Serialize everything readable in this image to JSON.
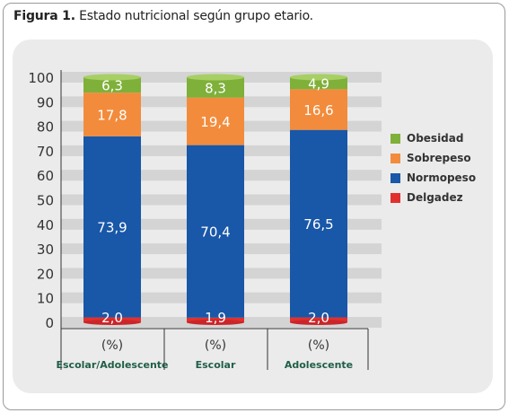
{
  "caption": {
    "number": "Figura 1.",
    "text": " Estado nutricional según grupo etario."
  },
  "colors": {
    "Obesidad": "#7fb03a",
    "Sobrepeso": "#f28c3c",
    "Normopeso": "#1957a8",
    "Delgadez": "#e0302d"
  },
  "chart_data": {
    "type": "bar",
    "stacked": true,
    "categories": [
      "Escolar/Adolescente",
      "Escolar",
      "Adolescente"
    ],
    "category_unit_label": "(%)",
    "series": [
      {
        "name": "Delgadez",
        "values": [
          2.0,
          1.9,
          2.0
        ],
        "labels": [
          "2,0",
          "1,9",
          "2,0"
        ]
      },
      {
        "name": "Normopeso",
        "values": [
          73.9,
          70.4,
          76.5
        ],
        "labels": [
          "73,9",
          "70,4",
          "76,5"
        ]
      },
      {
        "name": "Sobrepeso",
        "values": [
          17.8,
          19.4,
          16.6
        ],
        "labels": [
          "17,8",
          "19,4",
          "16,6"
        ]
      },
      {
        "name": "Obesidad",
        "values": [
          6.3,
          8.3,
          4.9
        ],
        "labels": [
          "6,3",
          "8,3",
          "4,9"
        ]
      }
    ],
    "yticks": [
      "0",
      "10",
      "20",
      "30",
      "40",
      "50",
      "60",
      "70",
      "80",
      "90",
      "100"
    ],
    "ylim": [
      0,
      100
    ],
    "legend_order": [
      "Obesidad",
      "Sobrepeso",
      "Normopeso",
      "Delgadez"
    ],
    "legend_placement": "right"
  }
}
